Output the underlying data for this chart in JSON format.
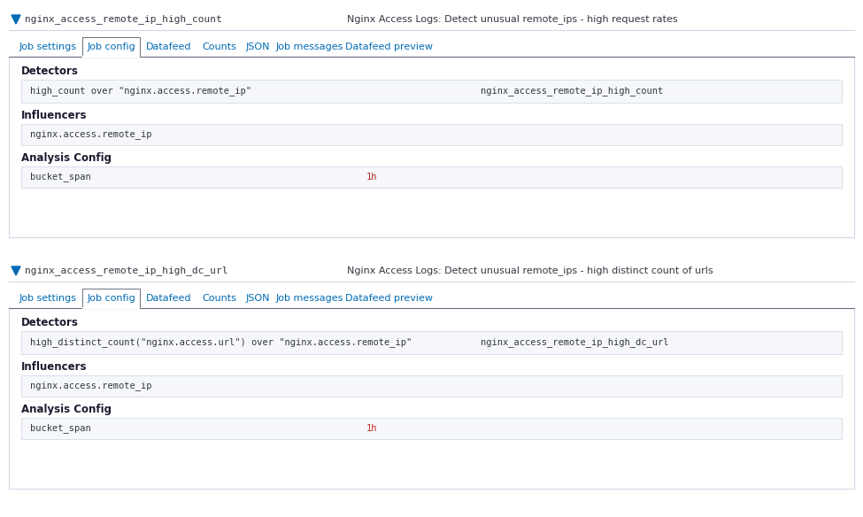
{
  "bg_color": "#ffffff",
  "border_color": "#d3dae6",
  "box_bg": "#f5f7fa",
  "box_border": "#d3dae6",
  "tab_active_border": "#69707d",
  "link_color": "#006bb4",
  "text_medium": "#343741",
  "text_mono": "#343741",
  "arrow_color": "#006bb4",
  "label_bold_color": "#1a1a2e",
  "separator_color": "#d3dae6",
  "bucket_span_color": "#bd271e",
  "section1": {
    "job_id": "nginx_access_remote_ip_high_count",
    "job_description": "Nginx Access Logs: Detect unusual remote_ips - high request rates",
    "tabs": [
      "Job settings",
      "Job config",
      "Datafeed",
      "Counts",
      "JSON",
      "Job messages",
      "Datafeed preview"
    ],
    "active_tab": "Job config",
    "detector_text": "high_count over \"nginx.access.remote_ip\"",
    "detector_label": "nginx_access_remote_ip_high_count",
    "influencer_text": "nginx.access.remote_ip",
    "bucket_span": "1h"
  },
  "section2": {
    "job_id": "nginx_access_remote_ip_high_dc_url",
    "job_description": "Nginx Access Logs: Detect unusual remote_ips - high distinct count of urls",
    "tabs": [
      "Job settings",
      "Job config",
      "Datafeed",
      "Counts",
      "JSON",
      "Job messages",
      "Datafeed preview"
    ],
    "active_tab": "Job config",
    "detector_text": "high_distinct_count(\"nginx.access.url\") over \"nginx.access.remote_ip\"",
    "detector_label": "nginx_access_remote_ip_high_dc_url",
    "influencer_text": "nginx.access.remote_ip",
    "bucket_span": "1h"
  }
}
